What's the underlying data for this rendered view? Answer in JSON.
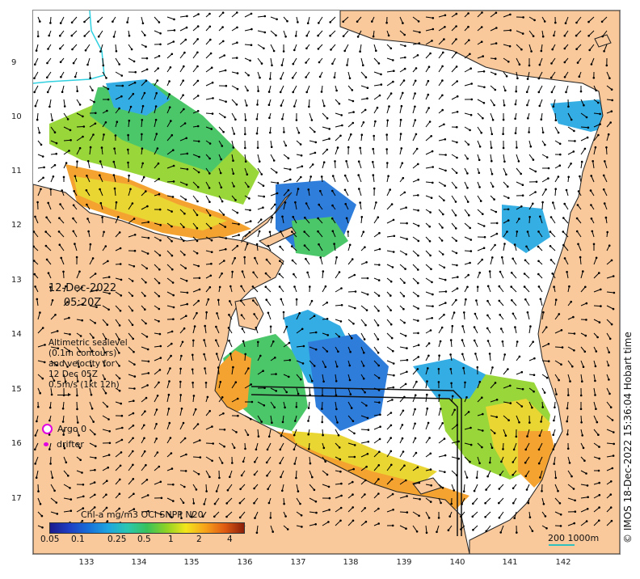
{
  "map": {
    "y_ticks": [
      "9",
      "10",
      "11",
      "12",
      "13",
      "14",
      "15",
      "16",
      "17"
    ],
    "x_ticks": [
      "133",
      "134",
      "135",
      "136",
      "137",
      "138",
      "139",
      "140",
      "141",
      "142"
    ],
    "colors": {
      "land": "#f9c89b",
      "ocean": "#ffffff",
      "coast_outline": "#222222",
      "river": "#30d0e0",
      "vectors": "#000000",
      "argo": "#e000e0"
    },
    "icon": "velocity-arrow-icon"
  },
  "info": {
    "date": "12-Dec-2022",
    "time": "05:20Z",
    "altimetry_lines": [
      "Altimetric sealevel",
      "(0.1m contours)",
      "and velocity for",
      "12 Dec 05Z",
      "0.5m/s (1kt 12h)"
    ]
  },
  "legend": {
    "argo_label": "Argo 0",
    "drifter_label": "drifter"
  },
  "colorbar": {
    "title": "Chl-a mg/m3 OCi SNPP N20",
    "labels": [
      "0.05",
      "0.1",
      "0.25",
      "0.5",
      "1",
      "2",
      "4"
    ]
  },
  "scalebar": {
    "label": "200  1000m"
  },
  "credit": "© IMOS 18-Dec-2022 15:36:04 Hobart time"
}
